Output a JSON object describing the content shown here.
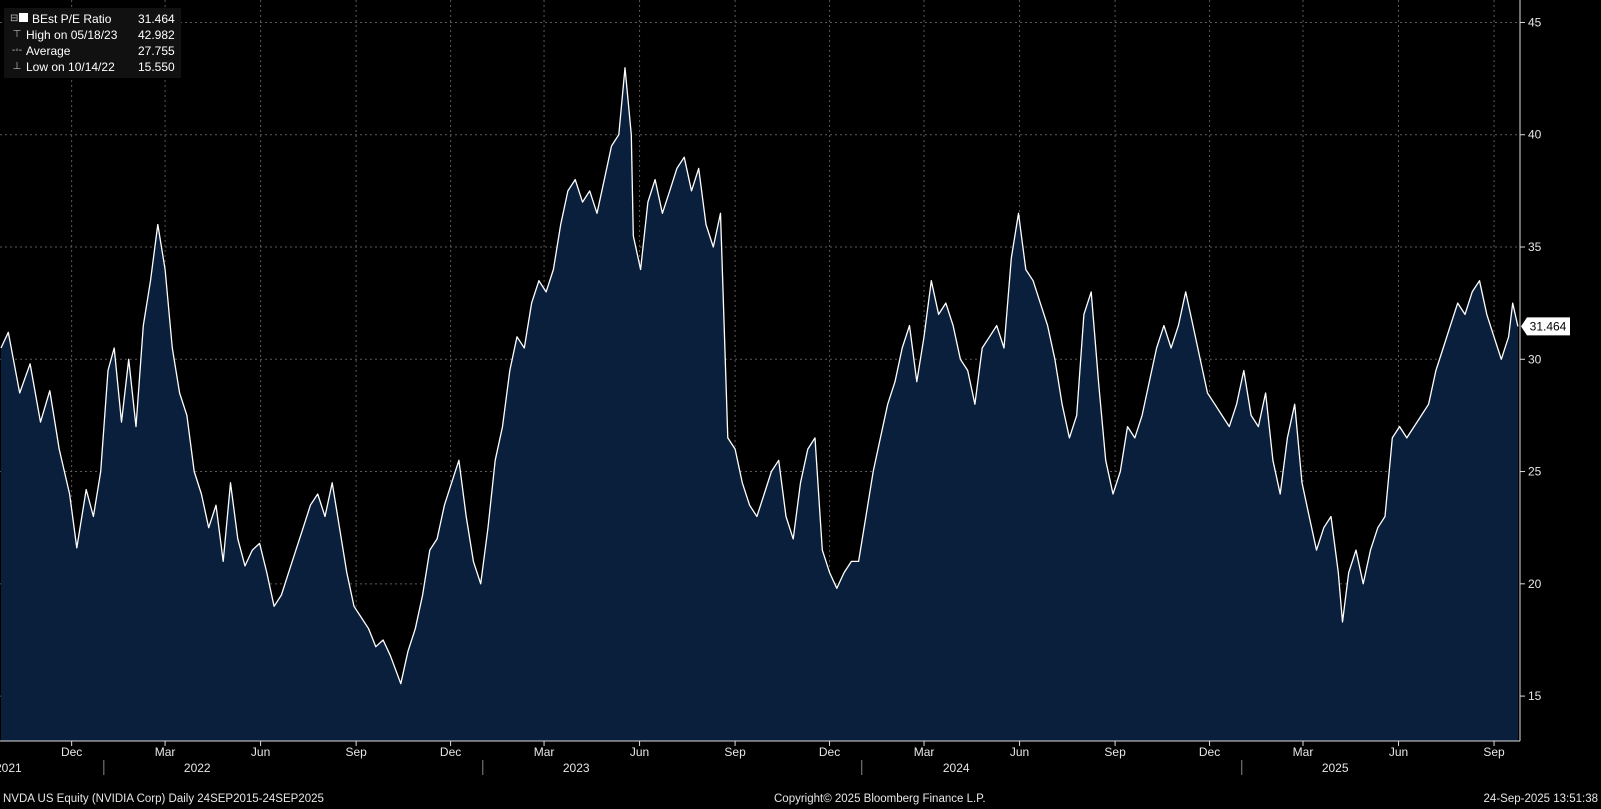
{
  "legend": {
    "series_label": "BEst P/E Ratio",
    "series_value": "31.464",
    "high_label": "High on 05/18/23",
    "high_value": "42.982",
    "avg_label": "Average",
    "avg_value": "27.755",
    "low_label": "Low on 10/14/22",
    "low_value": "15.550"
  },
  "last_value_tag": "31.464",
  "footer": {
    "left": "NVDA US Equity (NVIDIA Corp)  Daily 24SEP2015-24SEP2025",
    "center": "Copyright© 2025 Bloomberg Finance L.P.",
    "right": "24-Sep-2025 13:51:38"
  },
  "colors": {
    "background": "#000000",
    "area_fill": "#0a1f3b",
    "line": "#ffffff",
    "grid": "#5a5a5a"
  },
  "chart_data": {
    "type": "area",
    "series": [
      {
        "name": "BEst P/E Ratio",
        "points": [
          [
            "2021-09-24",
            30.5
          ],
          [
            "2021-10-01",
            31.2
          ],
          [
            "2021-10-12",
            28.5
          ],
          [
            "2021-10-22",
            29.8
          ],
          [
            "2021-11-01",
            27.2
          ],
          [
            "2021-11-10",
            28.6
          ],
          [
            "2021-11-19",
            26.0
          ],
          [
            "2021-11-29",
            24.0
          ],
          [
            "2021-12-06",
            21.6
          ],
          [
            "2021-12-15",
            24.2
          ],
          [
            "2021-12-22",
            23.0
          ],
          [
            "2021-12-29",
            25.0
          ],
          [
            "2022-01-05",
            29.5
          ],
          [
            "2022-01-11",
            30.5
          ],
          [
            "2022-01-18",
            27.2
          ],
          [
            "2022-01-25",
            30.0
          ],
          [
            "2022-02-01",
            27.0
          ],
          [
            "2022-02-08",
            31.5
          ],
          [
            "2022-02-15",
            33.5
          ],
          [
            "2022-02-22",
            36.0
          ],
          [
            "2022-03-01",
            34.0
          ],
          [
            "2022-03-08",
            30.5
          ],
          [
            "2022-03-15",
            28.5
          ],
          [
            "2022-03-22",
            27.5
          ],
          [
            "2022-03-29",
            25.0
          ],
          [
            "2022-04-05",
            24.0
          ],
          [
            "2022-04-12",
            22.5
          ],
          [
            "2022-04-19",
            23.5
          ],
          [
            "2022-04-26",
            21.0
          ],
          [
            "2022-05-03",
            24.5
          ],
          [
            "2022-05-10",
            22.0
          ],
          [
            "2022-05-17",
            20.8
          ],
          [
            "2022-05-24",
            21.5
          ],
          [
            "2022-05-31",
            21.8
          ],
          [
            "2022-06-07",
            20.5
          ],
          [
            "2022-06-14",
            19.0
          ],
          [
            "2022-06-21",
            19.5
          ],
          [
            "2022-06-28",
            20.5
          ],
          [
            "2022-07-05",
            21.5
          ],
          [
            "2022-07-12",
            22.5
          ],
          [
            "2022-07-19",
            23.5
          ],
          [
            "2022-07-26",
            24.0
          ],
          [
            "2022-08-02",
            23.0
          ],
          [
            "2022-08-09",
            24.5
          ],
          [
            "2022-08-16",
            22.5
          ],
          [
            "2022-08-23",
            20.5
          ],
          [
            "2022-08-30",
            19.0
          ],
          [
            "2022-09-06",
            18.5
          ],
          [
            "2022-09-13",
            18.0
          ],
          [
            "2022-09-20",
            17.2
          ],
          [
            "2022-09-27",
            17.5
          ],
          [
            "2022-10-04",
            16.8
          ],
          [
            "2022-10-14",
            15.55
          ],
          [
            "2022-10-21",
            17.0
          ],
          [
            "2022-10-28",
            18.0
          ],
          [
            "2022-11-04",
            19.5
          ],
          [
            "2022-11-11",
            21.5
          ],
          [
            "2022-11-18",
            22.0
          ],
          [
            "2022-11-25",
            23.5
          ],
          [
            "2022-12-02",
            24.5
          ],
          [
            "2022-12-09",
            25.5
          ],
          [
            "2022-12-16",
            23.0
          ],
          [
            "2022-12-23",
            21.0
          ],
          [
            "2022-12-30",
            20.0
          ],
          [
            "2023-01-06",
            22.5
          ],
          [
            "2023-01-13",
            25.5
          ],
          [
            "2023-01-20",
            27.0
          ],
          [
            "2023-01-27",
            29.5
          ],
          [
            "2023-02-03",
            31.0
          ],
          [
            "2023-02-10",
            30.5
          ],
          [
            "2023-02-17",
            32.5
          ],
          [
            "2023-02-24",
            33.5
          ],
          [
            "2023-03-03",
            33.0
          ],
          [
            "2023-03-10",
            34.0
          ],
          [
            "2023-03-17",
            36.0
          ],
          [
            "2023-03-24",
            37.5
          ],
          [
            "2023-03-31",
            38.0
          ],
          [
            "2023-04-07",
            37.0
          ],
          [
            "2023-04-14",
            37.5
          ],
          [
            "2023-04-21",
            36.5
          ],
          [
            "2023-04-28",
            38.0
          ],
          [
            "2023-05-05",
            39.5
          ],
          [
            "2023-05-12",
            40.0
          ],
          [
            "2023-05-18",
            42.982
          ],
          [
            "2023-05-24",
            40.0
          ],
          [
            "2023-05-26",
            35.5
          ],
          [
            "2023-06-02",
            34.0
          ],
          [
            "2023-06-09",
            37.0
          ],
          [
            "2023-06-16",
            38.0
          ],
          [
            "2023-06-23",
            36.5
          ],
          [
            "2023-06-30",
            37.5
          ],
          [
            "2023-07-07",
            38.5
          ],
          [
            "2023-07-14",
            39.0
          ],
          [
            "2023-07-21",
            37.5
          ],
          [
            "2023-07-28",
            38.5
          ],
          [
            "2023-08-04",
            36.0
          ],
          [
            "2023-08-11",
            35.0
          ],
          [
            "2023-08-18",
            36.5
          ],
          [
            "2023-08-25",
            26.5
          ],
          [
            "2023-09-01",
            26.0
          ],
          [
            "2023-09-08",
            24.5
          ],
          [
            "2023-09-15",
            23.5
          ],
          [
            "2023-09-22",
            23.0
          ],
          [
            "2023-09-29",
            24.0
          ],
          [
            "2023-10-06",
            25.0
          ],
          [
            "2023-10-13",
            25.5
          ],
          [
            "2023-10-20",
            23.0
          ],
          [
            "2023-10-27",
            22.0
          ],
          [
            "2023-11-03",
            24.5
          ],
          [
            "2023-11-10",
            26.0
          ],
          [
            "2023-11-17",
            26.5
          ],
          [
            "2023-11-24",
            21.5
          ],
          [
            "2023-12-01",
            20.5
          ],
          [
            "2023-12-08",
            19.8
          ],
          [
            "2023-12-15",
            20.5
          ],
          [
            "2023-12-22",
            21.0
          ],
          [
            "2023-12-29",
            21.0
          ],
          [
            "2024-01-05",
            23.0
          ],
          [
            "2024-01-12",
            25.0
          ],
          [
            "2024-01-19",
            26.5
          ],
          [
            "2024-01-26",
            28.0
          ],
          [
            "2024-02-02",
            29.0
          ],
          [
            "2024-02-09",
            30.5
          ],
          [
            "2024-02-16",
            31.5
          ],
          [
            "2024-02-23",
            29.0
          ],
          [
            "2024-03-01",
            31.0
          ],
          [
            "2024-03-08",
            33.5
          ],
          [
            "2024-03-15",
            32.0
          ],
          [
            "2024-03-22",
            32.5
          ],
          [
            "2024-03-29",
            31.5
          ],
          [
            "2024-04-05",
            30.0
          ],
          [
            "2024-04-12",
            29.5
          ],
          [
            "2024-04-19",
            28.0
          ],
          [
            "2024-04-26",
            30.5
          ],
          [
            "2024-05-03",
            31.0
          ],
          [
            "2024-05-10",
            31.5
          ],
          [
            "2024-05-17",
            30.5
          ],
          [
            "2024-05-24",
            34.5
          ],
          [
            "2024-05-31",
            36.5
          ],
          [
            "2024-06-07",
            34.0
          ],
          [
            "2024-06-14",
            33.5
          ],
          [
            "2024-06-21",
            32.5
          ],
          [
            "2024-06-28",
            31.5
          ],
          [
            "2024-07-05",
            30.0
          ],
          [
            "2024-07-12",
            28.0
          ],
          [
            "2024-07-19",
            26.5
          ],
          [
            "2024-07-26",
            27.5
          ],
          [
            "2024-08-02",
            32.0
          ],
          [
            "2024-08-09",
            33.0
          ],
          [
            "2024-08-16",
            29.0
          ],
          [
            "2024-08-23",
            25.5
          ],
          [
            "2024-08-30",
            24.0
          ],
          [
            "2024-09-06",
            25.0
          ],
          [
            "2024-09-13",
            27.0
          ],
          [
            "2024-09-20",
            26.5
          ],
          [
            "2024-09-27",
            27.5
          ],
          [
            "2024-10-04",
            29.0
          ],
          [
            "2024-10-11",
            30.5
          ],
          [
            "2024-10-18",
            31.5
          ],
          [
            "2024-10-25",
            30.5
          ],
          [
            "2024-11-01",
            31.5
          ],
          [
            "2024-11-08",
            33.0
          ],
          [
            "2024-11-15",
            31.5
          ],
          [
            "2024-11-22",
            30.0
          ],
          [
            "2024-11-29",
            28.5
          ],
          [
            "2024-12-06",
            28.0
          ],
          [
            "2024-12-13",
            27.5
          ],
          [
            "2024-12-20",
            27.0
          ],
          [
            "2024-12-27",
            28.0
          ],
          [
            "2025-01-03",
            29.5
          ],
          [
            "2025-01-10",
            27.5
          ],
          [
            "2025-01-17",
            27.0
          ],
          [
            "2025-01-24",
            28.5
          ],
          [
            "2025-01-31",
            25.5
          ],
          [
            "2025-02-07",
            24.0
          ],
          [
            "2025-02-14",
            26.5
          ],
          [
            "2025-02-21",
            28.0
          ],
          [
            "2025-02-28",
            24.5
          ],
          [
            "2025-03-07",
            23.0
          ],
          [
            "2025-03-14",
            21.5
          ],
          [
            "2025-03-21",
            22.5
          ],
          [
            "2025-03-28",
            23.0
          ],
          [
            "2025-04-04",
            20.5
          ],
          [
            "2025-04-08",
            18.3
          ],
          [
            "2025-04-14",
            20.5
          ],
          [
            "2025-04-21",
            21.5
          ],
          [
            "2025-04-28",
            20.0
          ],
          [
            "2025-05-05",
            21.5
          ],
          [
            "2025-05-12",
            22.5
          ],
          [
            "2025-05-19",
            23.0
          ],
          [
            "2025-05-26",
            26.5
          ],
          [
            "2025-06-02",
            27.0
          ],
          [
            "2025-06-09",
            26.5
          ],
          [
            "2025-06-16",
            27.0
          ],
          [
            "2025-06-23",
            27.5
          ],
          [
            "2025-06-30",
            28.0
          ],
          [
            "2025-07-07",
            29.5
          ],
          [
            "2025-07-14",
            30.5
          ],
          [
            "2025-07-21",
            31.5
          ],
          [
            "2025-07-28",
            32.5
          ],
          [
            "2025-08-04",
            32.0
          ],
          [
            "2025-08-11",
            33.0
          ],
          [
            "2025-08-18",
            33.5
          ],
          [
            "2025-08-25",
            32.0
          ],
          [
            "2025-09-01",
            31.0
          ],
          [
            "2025-09-08",
            30.0
          ],
          [
            "2025-09-15",
            31.0
          ],
          [
            "2025-09-19",
            32.5
          ],
          [
            "2025-09-24",
            31.464
          ]
        ]
      }
    ],
    "y_ticks": [
      15,
      20,
      25,
      30,
      35,
      40,
      45
    ],
    "ylim": [
      13,
      46
    ],
    "x_range": [
      "2021-09-23",
      "2025-09-26"
    ],
    "month_ticks": [
      {
        "date": "2021-12-01",
        "label": "Dec"
      },
      {
        "date": "2022-03-01",
        "label": "Mar"
      },
      {
        "date": "2022-06-01",
        "label": "Jun"
      },
      {
        "date": "2022-09-01",
        "label": "Sep"
      },
      {
        "date": "2022-12-01",
        "label": "Dec"
      },
      {
        "date": "2023-03-01",
        "label": "Mar"
      },
      {
        "date": "2023-06-01",
        "label": "Jun"
      },
      {
        "date": "2023-09-01",
        "label": "Sep"
      },
      {
        "date": "2023-12-01",
        "label": "Dec"
      },
      {
        "date": "2024-03-01",
        "label": "Mar"
      },
      {
        "date": "2024-06-01",
        "label": "Jun"
      },
      {
        "date": "2024-09-01",
        "label": "Sep"
      },
      {
        "date": "2024-12-01",
        "label": "Dec"
      },
      {
        "date": "2025-03-01",
        "label": "Mar"
      },
      {
        "date": "2025-06-01",
        "label": "Jun"
      },
      {
        "date": "2025-09-01",
        "label": "Sep"
      }
    ],
    "year_labels": [
      {
        "date": "2021-10-01",
        "label": "2021"
      },
      {
        "date": "2022-04-01",
        "label": "2022"
      },
      {
        "date": "2023-04-01",
        "label": "2023"
      },
      {
        "date": "2024-04-01",
        "label": "2024"
      },
      {
        "date": "2025-04-01",
        "label": "2025"
      }
    ],
    "grid": true,
    "y_axis_position": "right"
  }
}
